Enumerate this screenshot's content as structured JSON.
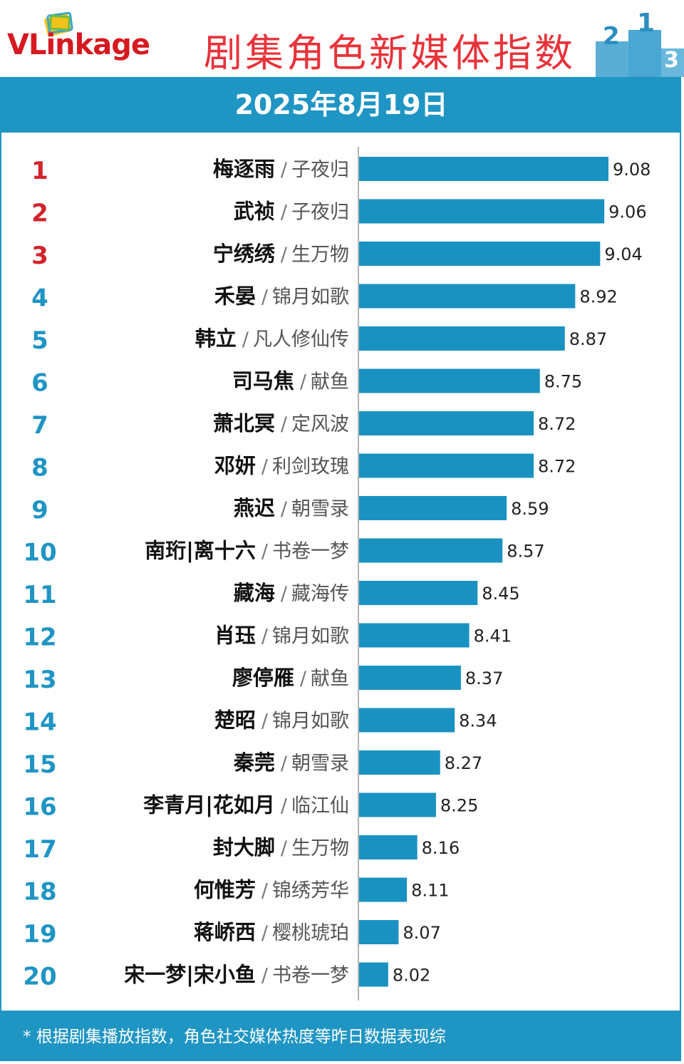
{
  "header": {
    "logo_text_v": "V",
    "logo_text_rest": "Linkage",
    "title": "剧集角色新媒体指数",
    "date": "2025年8月19日"
  },
  "footer": {
    "note": "* 根据剧集播放指数，角色社交媒体热度等昨日数据表现综"
  },
  "colors": {
    "accent": "#1f95c4",
    "bar": "#1a92c1",
    "title_red": "#e8333a",
    "top3_rank": "#d3232b",
    "rank_blue": "#1f95c4"
  },
  "chart_data": {
    "type": "bar",
    "orientation": "horizontal",
    "title": "剧集角色新媒体指数",
    "subtitle": "2025年8月19日",
    "xlabel": "",
    "ylabel": "",
    "separator": "/",
    "items": [
      {
        "rank": "1",
        "name": "梅逐雨",
        "drama": "子夜归",
        "value": 9.08
      },
      {
        "rank": "2",
        "name": "武祯",
        "drama": "子夜归",
        "value": 9.06
      },
      {
        "rank": "3",
        "name": "宁绣绣",
        "drama": "生万物",
        "value": 9.04
      },
      {
        "rank": "4",
        "name": "禾晏",
        "drama": "锦月如歌",
        "value": 8.92
      },
      {
        "rank": "5",
        "name": "韩立",
        "drama": "凡人修仙传",
        "value": 8.87
      },
      {
        "rank": "6",
        "name": "司马焦",
        "drama": "献鱼",
        "value": 8.75
      },
      {
        "rank": "7",
        "name": "萧北冥",
        "drama": "定风波",
        "value": 8.72
      },
      {
        "rank": "8",
        "name": "邓妍",
        "drama": "利剑玫瑰",
        "value": 8.72
      },
      {
        "rank": "9",
        "name": "燕迟",
        "drama": "朝雪录",
        "value": 8.59
      },
      {
        "rank": "10",
        "name": "南珩|离十六",
        "drama": "书卷一梦",
        "value": 8.57
      },
      {
        "rank": "11",
        "name": "藏海",
        "drama": "藏海传",
        "value": 8.45
      },
      {
        "rank": "12",
        "name": "肖珏",
        "drama": "锦月如歌",
        "value": 8.41
      },
      {
        "rank": "13",
        "name": "廖停雁",
        "drama": "献鱼",
        "value": 8.37
      },
      {
        "rank": "14",
        "name": "楚昭",
        "drama": "锦月如歌",
        "value": 8.34
      },
      {
        "rank": "15",
        "name": "秦莞",
        "drama": "朝雪录",
        "value": 8.27
      },
      {
        "rank": "16",
        "name": "李青月|花如月",
        "drama": "临江仙",
        "value": 8.25
      },
      {
        "rank": "17",
        "name": "封大脚",
        "drama": "生万物",
        "value": 8.16
      },
      {
        "rank": "18",
        "name": "何惟芳",
        "drama": "锦绣芳华",
        "value": 8.11
      },
      {
        "rank": "19",
        "name": "蒋峤西",
        "drama": "樱桃琥珀",
        "value": 8.07
      },
      {
        "rank": "20",
        "name": "宋一梦|宋小鱼",
        "drama": "书卷一梦",
        "value": 8.02
      }
    ],
    "axis_min": 7.88,
    "axis_max": 9.08
  }
}
